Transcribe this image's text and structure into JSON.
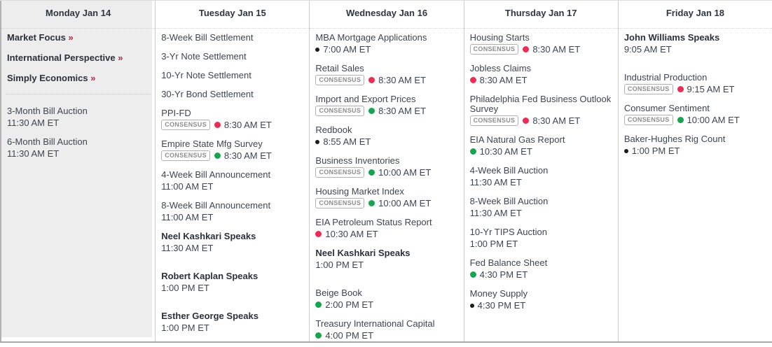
{
  "colors": {
    "red": "#ea2d55",
    "green": "#17a350",
    "black": "#1c1c1c",
    "link_arrow": "#a72b49",
    "highlight_bg": "#ededed",
    "title_text": "#3e4550",
    "bold_text": "#2a313c",
    "badge_text": "#8d8d8d",
    "badge_border": "#b0b0b0"
  },
  "days": [
    {
      "id": "monday",
      "name": "Monday Jan 14",
      "highlighted": true,
      "items": [
        {
          "type": "link",
          "label": "Market Focus",
          "arrow": "»"
        },
        {
          "type": "link",
          "label": "International Perspective",
          "arrow": "»"
        },
        {
          "type": "link",
          "label": "Simply Economics",
          "arrow": "»"
        },
        {
          "type": "divider"
        },
        {
          "type": "event",
          "title": "3-Month Bill Auction",
          "time": "11:30 AM ET"
        },
        {
          "type": "event",
          "title": "6-Month Bill Auction",
          "time": "11:30 AM ET"
        }
      ]
    },
    {
      "id": "tuesday",
      "name": "Tuesday Jan 15",
      "highlighted": false,
      "items": [
        {
          "type": "event",
          "title": "8-Week Bill Settlement"
        },
        {
          "type": "event",
          "title": "3-Yr Note Settlement"
        },
        {
          "type": "event",
          "title": "10-Yr Note Settlement"
        },
        {
          "type": "event",
          "title": "30-Yr Bond Settlement"
        },
        {
          "type": "event",
          "title": "PPI-FD",
          "consensus_label": "CONSENSUS",
          "dot": "red",
          "time": "8:30 AM ET"
        },
        {
          "type": "event",
          "title": "Empire State Mfg Survey",
          "consensus_label": "CONSENSUS",
          "dot": "green",
          "time": "8:30 AM ET"
        },
        {
          "type": "event",
          "title": "4-Week Bill Announcement",
          "time": "11:00 AM ET"
        },
        {
          "type": "event",
          "title": "8-Week Bill Announcement",
          "time": "11:00 AM ET"
        },
        {
          "type": "event",
          "title": "Neel Kashkari Speaks",
          "bold": true,
          "time": "11:30 AM ET"
        },
        {
          "type": "spacer"
        },
        {
          "type": "event",
          "title": "Robert Kaplan Speaks",
          "bold": true,
          "time": "1:00 PM ET"
        },
        {
          "type": "spacer"
        },
        {
          "type": "event",
          "title": "Esther George Speaks",
          "bold": true,
          "time": "1:00 PM ET"
        }
      ]
    },
    {
      "id": "wednesday",
      "name": "Wednesday Jan 16",
      "highlighted": false,
      "items": [
        {
          "type": "event",
          "title": "MBA Mortgage Applications",
          "dot": "black",
          "time": "7:00 AM ET"
        },
        {
          "type": "event",
          "title": "Retail Sales",
          "consensus_label": "CONSENSUS",
          "dot": "red",
          "time": "8:30 AM ET"
        },
        {
          "type": "event",
          "title": "Import and Export Prices",
          "consensus_label": "CONSENSUS",
          "dot": "green",
          "time": "8:30 AM ET"
        },
        {
          "type": "event",
          "title": "Redbook",
          "dot": "black",
          "time": "8:55 AM ET"
        },
        {
          "type": "event",
          "title": "Business Inventories",
          "consensus_label": "CONSENSUS",
          "dot": "green",
          "time": "10:00 AM ET"
        },
        {
          "type": "event",
          "title": "Housing Market Index",
          "consensus_label": "CONSENSUS",
          "dot": "green",
          "time": "10:00 AM ET"
        },
        {
          "type": "event",
          "title": "EIA Petroleum Status Report",
          "dot": "red",
          "time": "10:30 AM ET"
        },
        {
          "type": "event",
          "title": "Neel Kashkari Speaks",
          "bold": true,
          "time": "1:00 PM ET"
        },
        {
          "type": "spacer"
        },
        {
          "type": "event",
          "title": "Beige Book",
          "dot": "green",
          "time": "2:00 PM ET"
        },
        {
          "type": "event",
          "title": "Treasury International Capital",
          "dot": "green",
          "time": "4:00 PM ET"
        }
      ]
    },
    {
      "id": "thursday",
      "name": "Thursday Jan 17",
      "highlighted": false,
      "items": [
        {
          "type": "event",
          "title": "Housing Starts",
          "consensus_label": "CONSENSUS",
          "dot": "red",
          "time": "8:30 AM ET"
        },
        {
          "type": "event",
          "title": "Jobless Claims",
          "dot": "red",
          "time": "8:30 AM ET"
        },
        {
          "type": "event",
          "title": "Philadelphia Fed Business Outlook Survey",
          "consensus_label": "CONSENSUS",
          "dot": "red",
          "time": "8:30 AM ET"
        },
        {
          "type": "event",
          "title": "EIA Natural Gas Report",
          "dot": "green",
          "time": "10:30 AM ET"
        },
        {
          "type": "event",
          "title": "4-Week Bill Auction",
          "time": "11:30 AM ET"
        },
        {
          "type": "event",
          "title": "8-Week Bill Auction",
          "time": "11:30 AM ET"
        },
        {
          "type": "event",
          "title": "10-Yr TIPS Auction",
          "time": "1:00 PM ET"
        },
        {
          "type": "event",
          "title": "Fed Balance Sheet",
          "dot": "green",
          "time": "4:30 PM ET"
        },
        {
          "type": "event",
          "title": "Money Supply",
          "dot": "black",
          "time": "4:30 PM ET"
        }
      ]
    },
    {
      "id": "friday",
      "name": "Friday Jan 18",
      "highlighted": false,
      "items": [
        {
          "type": "event",
          "title": "John Williams Speaks",
          "bold": true,
          "time": "9:05 AM ET"
        },
        {
          "type": "spacer"
        },
        {
          "type": "event",
          "title": "Industrial Production",
          "consensus_label": "CONSENSUS",
          "dot": "red",
          "time": "9:15 AM ET"
        },
        {
          "type": "event",
          "title": "Consumer Sentiment",
          "consensus_label": "CONSENSUS",
          "dot": "green",
          "time": "10:00 AM ET"
        },
        {
          "type": "event",
          "title": "Baker-Hughes Rig Count",
          "dot": "black",
          "time": "1:00 PM ET"
        }
      ]
    }
  ]
}
